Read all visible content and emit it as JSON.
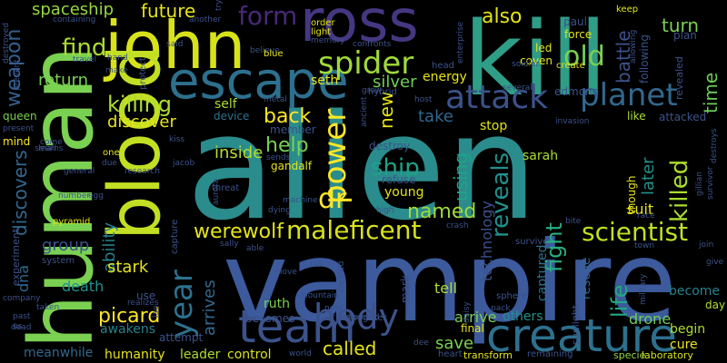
{
  "background": "#000000",
  "words": [
    {
      "text": "alien",
      "color": "#2a8c8c"
    },
    {
      "text": "vampire",
      "color": "#3c5a9c"
    },
    {
      "text": "human",
      "color": "#7ad151"
    },
    {
      "text": "kill",
      "color": "#2f9e87"
    },
    {
      "text": "john",
      "color": "#d8e219"
    },
    {
      "text": "blood",
      "color": "#c2df23"
    },
    {
      "text": "ross",
      "color": "#453781"
    },
    {
      "text": "escape",
      "color": "#2d708e"
    },
    {
      "text": "team",
      "color": "#3b528b"
    },
    {
      "text": "body",
      "color": "#3b528b"
    },
    {
      "text": "creature",
      "color": "#2d708e"
    },
    {
      "text": "maleficent",
      "color": "#d8e219"
    },
    {
      "text": "werewolf",
      "color": "#e5e419"
    },
    {
      "text": "planet",
      "color": "#31688e"
    },
    {
      "text": "attack",
      "color": "#3b528b"
    },
    {
      "text": "spider",
      "color": "#a0da39"
    },
    {
      "text": "power",
      "color": "#fde725"
    },
    {
      "text": "killing",
      "color": "#addc30"
    },
    {
      "text": "year",
      "color": "#2c728e"
    },
    {
      "text": "form",
      "color": "#482878"
    },
    {
      "text": "find",
      "color": "#addc30"
    },
    {
      "text": "old",
      "color": "#7ad151"
    },
    {
      "text": "also",
      "color": "#e5e419"
    },
    {
      "text": "ship",
      "color": "#1fa188"
    },
    {
      "text": "scientist",
      "color": "#c2df23"
    },
    {
      "text": "weapon",
      "color": "#355f8d"
    },
    {
      "text": "future",
      "color": "#e5e419"
    },
    {
      "text": "spaceship",
      "color": "#95d840"
    },
    {
      "text": "return",
      "color": "#7ad151"
    },
    {
      "text": "discover",
      "color": "#e5e419"
    },
    {
      "text": "back",
      "color": "#fde725"
    },
    {
      "text": "help",
      "color": "#7ad151"
    },
    {
      "text": "inside",
      "color": "#b5de2b"
    },
    {
      "text": "dr",
      "color": "#fde725"
    },
    {
      "text": "named",
      "color": "#a0da39"
    },
    {
      "text": "killed",
      "color": "#addc30"
    },
    {
      "text": "reveals",
      "color": "#21918c"
    },
    {
      "text": "fight",
      "color": "#28ae80"
    },
    {
      "text": "life",
      "color": "#22a884"
    },
    {
      "text": "battle",
      "color": "#3b528b"
    },
    {
      "text": "turn",
      "color": "#7ad151"
    },
    {
      "text": "time",
      "color": "#6ece58"
    },
    {
      "text": "discovers",
      "color": "#31688e"
    },
    {
      "text": "ability",
      "color": "#26828e"
    },
    {
      "text": "arrives",
      "color": "#31688e"
    },
    {
      "text": "stark",
      "color": "#e5e419"
    },
    {
      "text": "group",
      "color": "#3b528b"
    },
    {
      "text": "picard",
      "color": "#fde725"
    },
    {
      "text": "dna",
      "color": "#31688e"
    },
    {
      "text": "death",
      "color": "#21918c"
    },
    {
      "text": "called",
      "color": "#e5e419"
    },
    {
      "text": "save",
      "color": "#7ad151"
    },
    {
      "text": "others",
      "color": "#21918c"
    },
    {
      "text": "using",
      "color": "#20a486"
    },
    {
      "text": "technology",
      "color": "#3b528b"
    },
    {
      "text": "suit",
      "color": "#e5e419"
    },
    {
      "text": "later",
      "color": "#21918c"
    },
    {
      "text": "rescue",
      "color": "#31688e"
    },
    {
      "text": "captured",
      "color": "#2c728e"
    },
    {
      "text": "drone",
      "color": "#6ece58"
    },
    {
      "text": "become",
      "color": "#26828e"
    },
    {
      "text": "begin",
      "color": "#addc30"
    },
    {
      "text": "cure",
      "color": "#e5e419"
    },
    {
      "text": "day",
      "color": "#b5de2b"
    },
    {
      "text": "laboratory",
      "color": "#d8e219"
    },
    {
      "text": "specie",
      "color": "#95d840"
    },
    {
      "text": "remaining",
      "color": "#3b528b"
    },
    {
      "text": "transform",
      "color": "#e5e419"
    },
    {
      "text": "heart",
      "color": "#3b528b"
    },
    {
      "text": "final",
      "color": "#e5e419"
    },
    {
      "text": "pack",
      "color": "#3b528b"
    },
    {
      "text": "arrive",
      "color": "#7ad151"
    },
    {
      "text": "mark",
      "color": "#3b528b"
    },
    {
      "text": "tell",
      "color": "#addc30"
    },
    {
      "text": "sarah",
      "color": "#addc30"
    },
    {
      "text": "stop",
      "color": "#e5e419"
    },
    {
      "text": "take",
      "color": "#31688e"
    },
    {
      "text": "new",
      "color": "#e5e419"
    },
    {
      "text": "silver",
      "color": "#6ece58"
    },
    {
      "text": "seth",
      "color": "#e5e419"
    },
    {
      "text": "self",
      "color": "#addc30"
    },
    {
      "text": "device",
      "color": "#2c728e"
    },
    {
      "text": "member",
      "color": "#3b528b"
    },
    {
      "text": "gandalf",
      "color": "#e5e419"
    },
    {
      "text": "young",
      "color": "#e5e419"
    },
    {
      "text": "refuse",
      "color": "#3b528b"
    },
    {
      "text": "ruth",
      "color": "#7ad151"
    },
    {
      "text": "becomes",
      "color": "#3b528b"
    },
    {
      "text": "control",
      "color": "#d8e219"
    },
    {
      "text": "leader",
      "color": "#addc30"
    },
    {
      "text": "attempt",
      "color": "#3b528b"
    },
    {
      "text": "humanity",
      "color": "#e5e419"
    },
    {
      "text": "awakens",
      "color": "#26828e"
    },
    {
      "text": "use",
      "color": "#3b528b"
    },
    {
      "text": "meanwhile",
      "color": "#31688e"
    },
    {
      "text": "queen",
      "color": "#7ad151"
    },
    {
      "text": "mind",
      "color": "#fde725"
    },
    {
      "text": "experiment",
      "color": "#3b528b"
    },
    {
      "text": "energy",
      "color": "#e5e419"
    },
    {
      "text": "edmond",
      "color": "#3b528b"
    },
    {
      "text": "coven",
      "color": "#e5e419"
    },
    {
      "text": "led",
      "color": "#e5e419"
    },
    {
      "text": "force",
      "color": "#e5e419"
    },
    {
      "text": "paul",
      "color": "#3b528b"
    },
    {
      "text": "plan",
      "color": "#3b528b"
    },
    {
      "text": "like",
      "color": "#addc30"
    },
    {
      "text": "attacked",
      "color": "#3b528b"
    },
    {
      "text": "revealed",
      "color": "#3b528b"
    },
    {
      "text": "following",
      "color": "#3b528b"
    },
    {
      "text": "though",
      "color": "#e5e419"
    },
    {
      "text": "hybrid",
      "color": "#3b528b"
    },
    {
      "text": "head",
      "color": "#3b528b"
    },
    {
      "text": "protect",
      "color": "#3b528b"
    },
    {
      "text": "system",
      "color": "#3b528b"
    },
    {
      "text": "pyramid",
      "color": "#e5e419"
    },
    {
      "text": "capture",
      "color": "#3b528b"
    },
    {
      "text": "sunlight",
      "color": "#3b528b"
    },
    {
      "text": "survive",
      "color": "#3b528b"
    },
    {
      "text": "daughter",
      "color": "#3b528b"
    },
    {
      "text": "sphere",
      "color": "#3b528b"
    },
    {
      "text": "containing",
      "color": "#3b528b"
    },
    {
      "text": "present",
      "color": "#3b528b"
    },
    {
      "text": "prevent",
      "color": "#3b528b"
    },
    {
      "text": "learns",
      "color": "#3b528b"
    },
    {
      "text": "general",
      "color": "#3b528b"
    },
    {
      "text": "number",
      "color": "#3b528b"
    },
    {
      "text": "company",
      "color": "#3b528b"
    },
    {
      "text": "past",
      "color": "#3b528b"
    },
    {
      "text": "taken",
      "color": "#3b528b"
    },
    {
      "text": "dead",
      "color": "#3b528b"
    },
    {
      "text": "research",
      "color": "#3b528b"
    },
    {
      "text": "threat",
      "color": "#3b528b"
    },
    {
      "text": "aurora",
      "color": "#3b528b"
    },
    {
      "text": "machine",
      "color": "#3b528b"
    },
    {
      "text": "dying",
      "color": "#3b528b"
    },
    {
      "text": "sally",
      "color": "#3b528b"
    },
    {
      "text": "able",
      "color": "#3b528b"
    },
    {
      "text": "love",
      "color": "#3b528b"
    },
    {
      "text": "fall",
      "color": "#3b528b"
    },
    {
      "text": "near",
      "color": "#3b528b"
    },
    {
      "text": "created",
      "color": "#3b528b"
    },
    {
      "text": "mountain",
      "color": "#3b528b"
    },
    {
      "text": "transformed",
      "color": "#3b528b"
    },
    {
      "text": "crash",
      "color": "#3b528b"
    },
    {
      "text": "invasion",
      "color": "#3b528b"
    },
    {
      "text": "military",
      "color": "#3b528b"
    },
    {
      "text": "town",
      "color": "#3b528b"
    },
    {
      "text": "join",
      "color": "#3b528b"
    },
    {
      "text": "give",
      "color": "#3b528b"
    },
    {
      "text": "survivor",
      "color": "#3b528b"
    },
    {
      "text": "destroys",
      "color": "#3b528b"
    },
    {
      "text": "gillian",
      "color": "#3b528b"
    },
    {
      "text": "bite",
      "color": "#3b528b"
    },
    {
      "text": "race",
      "color": "#3b528b"
    },
    {
      "text": "kiss",
      "color": "#3b528b"
    },
    {
      "text": "one",
      "color": "#e5e419"
    },
    {
      "text": "due",
      "color": "#3b528b"
    },
    {
      "text": "small",
      "color": "#3b528b"
    },
    {
      "text": "come",
      "color": "#3b528b"
    },
    {
      "text": "egg",
      "color": "#3b528b"
    },
    {
      "text": "jacob",
      "color": "#3b528b"
    },
    {
      "text": "sends",
      "color": "#3b528b"
    },
    {
      "text": "several",
      "color": "#3b528b"
    },
    {
      "text": "soldier",
      "color": "#3b528b"
    },
    {
      "text": "create",
      "color": "#e5e419"
    },
    {
      "text": "keep",
      "color": "#e5e419"
    },
    {
      "text": "allowing",
      "color": "#3b528b"
    },
    {
      "text": "enterprise",
      "color": "#3b528b"
    },
    {
      "text": "order",
      "color": "#e5e419"
    },
    {
      "text": "light",
      "color": "#e5e419"
    },
    {
      "text": "memory",
      "color": "#3b528b"
    },
    {
      "text": "confronts",
      "color": "#3b528b"
    },
    {
      "text": "believe",
      "color": "#3b528b"
    },
    {
      "text": "blue",
      "color": "#e5e419"
    },
    {
      "text": "hand",
      "color": "#3b528b"
    },
    {
      "text": "make",
      "color": "#3b528b"
    },
    {
      "text": "travel",
      "color": "#3b528b"
    },
    {
      "text": "said",
      "color": "#3b528b"
    },
    {
      "text": "another",
      "color": "#3b528b"
    },
    {
      "text": "try",
      "color": "#3b528b"
    },
    {
      "text": "destroyed",
      "color": "#3b528b"
    },
    {
      "text": "metal",
      "color": "#3b528b"
    },
    {
      "text": "host",
      "color": "#3b528b"
    },
    {
      "text": "ancient",
      "color": "#3b528b"
    },
    {
      "text": "grow",
      "color": "#3b528b"
    },
    {
      "text": "destroy",
      "color": "#3b528b"
    },
    {
      "text": "lao",
      "color": "#3b528b"
    },
    {
      "text": "realizes",
      "color": "#3b528b"
    },
    {
      "text": "us",
      "color": "#3b528b"
    },
    {
      "text": "world",
      "color": "#3b528b"
    },
    {
      "text": "dee",
      "color": "#3b528b"
    },
    {
      "text": "daisy",
      "color": "#3b528b"
    },
    {
      "text": "high",
      "color": "#3b528b"
    }
  ]
}
